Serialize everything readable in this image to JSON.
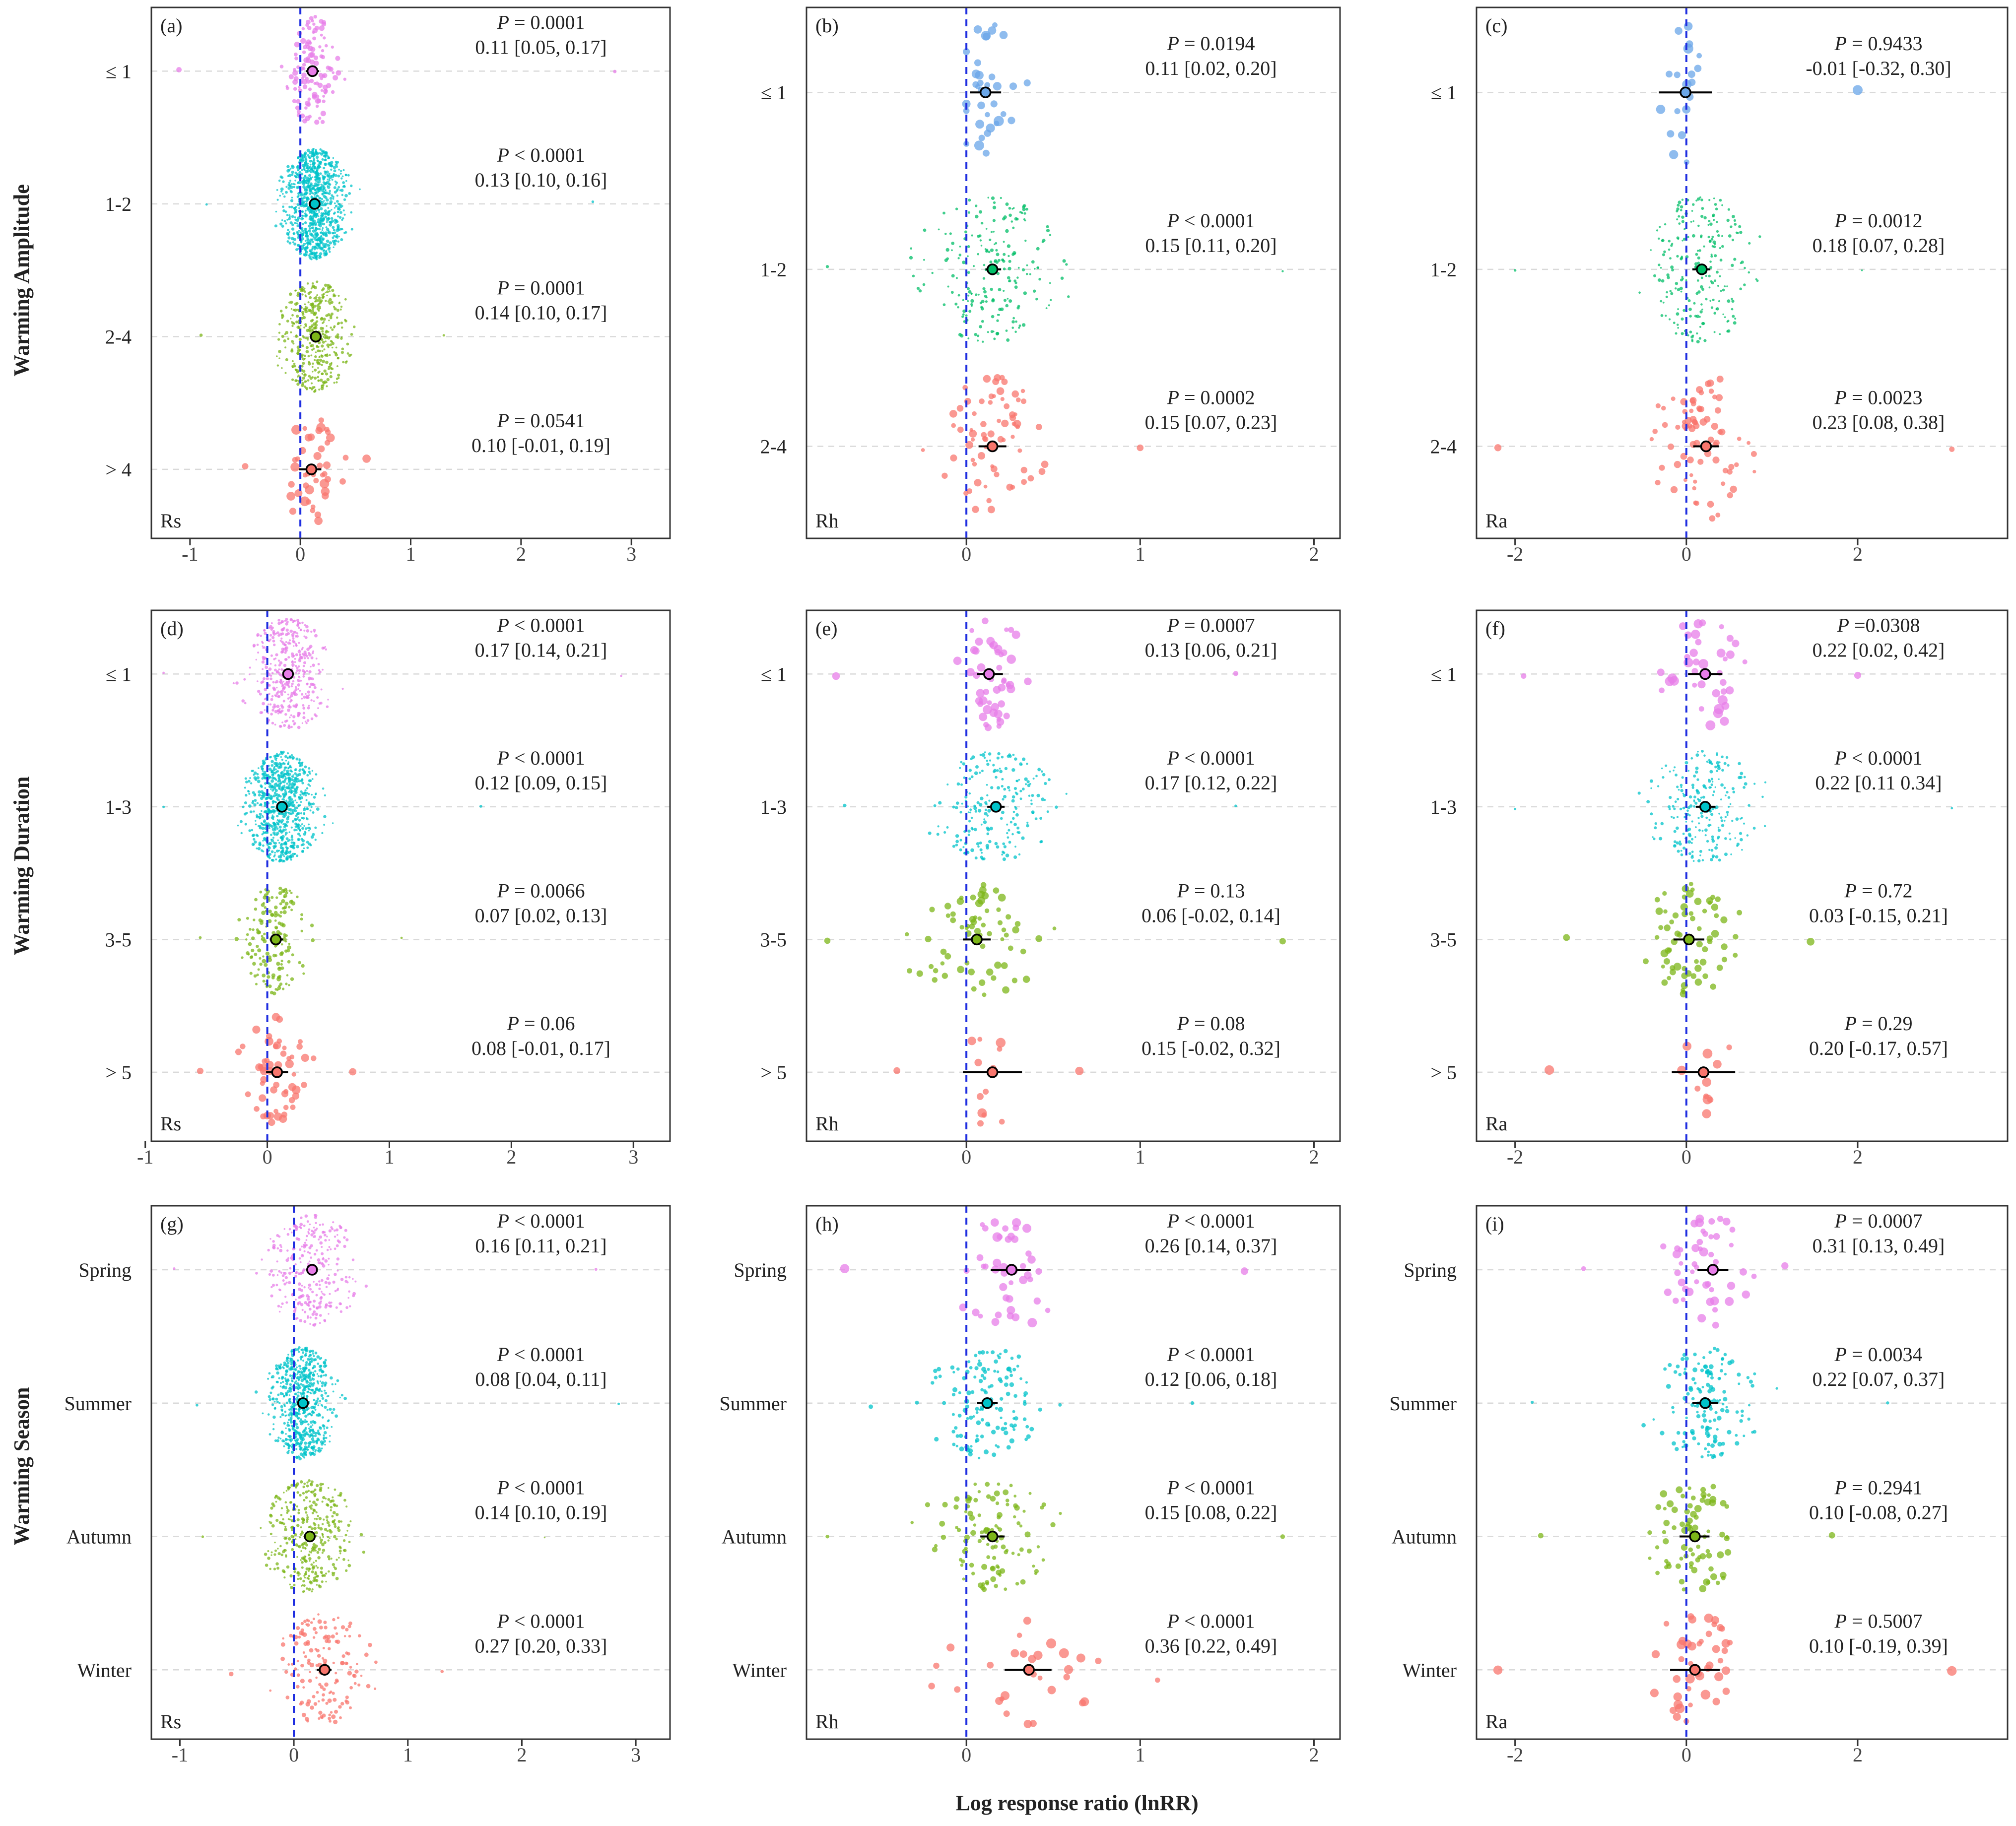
{
  "x_axis_label": "Log response ratio (lnRR)",
  "colors": {
    "c1": "#e77de8",
    "c2": "#00c3c9",
    "c3": "#7cb518",
    "c4": "#f8766d",
    "blue": "#6aa6e8",
    "green": "#00be67",
    "zero_line": "#1f2ee0"
  },
  "chart_data": [
    {
      "type": "scatter",
      "panel": "(a)",
      "response": "Rs",
      "row_title": "Warming Amplitude",
      "xlim": [
        -1.35,
        3.35
      ],
      "xticks": [
        -1,
        0,
        1,
        2,
        3
      ],
      "groups": [
        {
          "label": "≤ 1",
          "color": "#e77de8",
          "mean": 0.11,
          "ci": [
            0.05,
            0.17
          ],
          "p": "P = 0.0001",
          "ci_text": "0.11 [0.05, 0.17]",
          "n": 120,
          "spread": 0.18,
          "xmin": -1.1,
          "xmax": 2.85
        },
        {
          "label": "1-2",
          "color": "#00c3c9",
          "mean": 0.13,
          "ci": [
            0.1,
            0.16
          ],
          "p": "P < 0.0001",
          "ci_text": "0.13 [0.10, 0.16]",
          "n": 900,
          "spread": 0.22,
          "xmin": -0.85,
          "xmax": 2.65
        },
        {
          "label": "2-4",
          "color": "#7cb518",
          "mean": 0.14,
          "ci": [
            0.1,
            0.17
          ],
          "p": "P = 0.0001",
          "ci_text": "0.14 [0.10, 0.17]",
          "n": 420,
          "spread": 0.25,
          "xmin": -0.9,
          "xmax": 1.3
        },
        {
          "label": "> 4",
          "color": "#f8766d",
          "mean": 0.1,
          "ci": [
            -0.01,
            0.19
          ],
          "p": "P = 0.0541",
          "ci_text": "0.10 [-0.01, 0.19]",
          "n": 45,
          "spread": 0.22,
          "xmin": -0.5,
          "xmax": 0.6
        }
      ]
    },
    {
      "type": "scatter",
      "panel": "(b)",
      "response": "Rh",
      "xlim": [
        -0.92,
        2.15
      ],
      "xticks": [
        0,
        1,
        2
      ],
      "groups": [
        {
          "label": "≤ 1",
          "color": "#6aa6e8",
          "mean": 0.11,
          "ci": [
            0.02,
            0.2
          ],
          "p": "P = 0.0194",
          "ci_text": "0.11 [0.02, 0.20]",
          "n": 35,
          "spread": 0.12,
          "xmin": 0.0,
          "xmax": 0.35
        },
        {
          "label": "1-2",
          "color": "#00be67",
          "mean": 0.15,
          "ci": [
            0.11,
            0.2
          ],
          "p": "P < 0.0001",
          "ci_text": "0.15 [0.11, 0.20]",
          "n": 220,
          "spread": 0.3,
          "xmin": -0.8,
          "xmax": 1.82
        },
        {
          "label": "2-4",
          "color": "#f8766d",
          "mean": 0.15,
          "ci": [
            0.07,
            0.23
          ],
          "p": "P = 0.0002",
          "ci_text": "0.15 [0.07, 0.23]",
          "n": 70,
          "spread": 0.2,
          "xmin": -0.25,
          "xmax": 1.0
        }
      ]
    },
    {
      "type": "scatter",
      "panel": "(c)",
      "response": "Ra",
      "xlim": [
        -2.45,
        3.75
      ],
      "xticks": [
        -2,
        0,
        2
      ],
      "groups": [
        {
          "label": "≤ 1",
          "color": "#6aa6e8",
          "mean": -0.01,
          "ci": [
            -0.32,
            0.3
          ],
          "p": "P = 0.9433",
          "ci_text": "-0.01 [-0.32, 0.30]",
          "n": 20,
          "spread": 0.2,
          "xmin": -0.3,
          "xmax": 2.0
        },
        {
          "label": "1-2",
          "color": "#00be67",
          "mean": 0.18,
          "ci": [
            0.07,
            0.28
          ],
          "p": "P = 0.0012",
          "ci_text": "0.18 [0.07, 0.28]",
          "n": 230,
          "spread": 0.5,
          "xmin": -2.0,
          "xmax": 2.05
        },
        {
          "label": "2-4",
          "color": "#f8766d",
          "mean": 0.23,
          "ci": [
            0.08,
            0.38
          ],
          "p": "P = 0.0023",
          "ci_text": "0.23 [0.08, 0.38]",
          "n": 80,
          "spread": 0.45,
          "xmin": -2.2,
          "xmax": 3.1
        }
      ]
    },
    {
      "type": "scatter",
      "panel": "(d)",
      "response": "Rs",
      "row_title": "Warming Duration",
      "xlim": [
        -0.95,
        3.3
      ],
      "xticks": [
        -1,
        0,
        1,
        2,
        3
      ],
      "groups": [
        {
          "label": "≤ 1",
          "color": "#e77de8",
          "mean": 0.17,
          "ci": [
            0.14,
            0.21
          ],
          "p": "P < 0.0001",
          "ci_text": "0.17 [0.14, 0.21]",
          "n": 420,
          "spread": 0.25,
          "xmin": -0.85,
          "xmax": 2.9
        },
        {
          "label": "1-3",
          "color": "#00c3c9",
          "mean": 0.12,
          "ci": [
            0.09,
            0.15
          ],
          "p": "P < 0.0001",
          "ci_text": "0.12 [0.09, 0.15]",
          "n": 750,
          "spread": 0.22,
          "xmin": -0.85,
          "xmax": 1.75
        },
        {
          "label": "3-5",
          "color": "#7cb518",
          "mean": 0.07,
          "ci": [
            0.02,
            0.13
          ],
          "p": "P = 0.0066",
          "ci_text": "0.07 [0.02, 0.13]",
          "n": 170,
          "spread": 0.2,
          "xmin": -0.55,
          "xmax": 1.1
        },
        {
          "label": "> 5",
          "color": "#f8766d",
          "mean": 0.08,
          "ci": [
            -0.01,
            0.17
          ],
          "p": "P = 0.06",
          "ci_text": "0.08 [-0.01, 0.17]",
          "n": 55,
          "spread": 0.2,
          "xmin": -0.55,
          "xmax": 0.7
        }
      ]
    },
    {
      "type": "scatter",
      "panel": "(e)",
      "response": "Rh",
      "xlim": [
        -0.92,
        2.15
      ],
      "xticks": [
        0,
        1,
        2
      ],
      "groups": [
        {
          "label": "≤ 1",
          "color": "#e77de8",
          "mean": 0.13,
          "ci": [
            0.06,
            0.21
          ],
          "p": "P = 0.0007",
          "ci_text": "0.13 [0.06, 0.21]",
          "n": 50,
          "spread": 0.15,
          "xmin": -0.75,
          "xmax": 1.55
        },
        {
          "label": "1-3",
          "color": "#00c3c9",
          "mean": 0.17,
          "ci": [
            0.12,
            0.22
          ],
          "p": "P < 0.0001",
          "ci_text": "0.17 [0.12, 0.22]",
          "n": 210,
          "spread": 0.25,
          "xmin": -0.7,
          "xmax": 1.55
        },
        {
          "label": "3-5",
          "color": "#7cb518",
          "mean": 0.06,
          "ci": [
            -0.02,
            0.14
          ],
          "p": "P = 0.13",
          "ci_text": "0.06 [-0.02, 0.14]",
          "n": 70,
          "spread": 0.3,
          "xmin": -0.8,
          "xmax": 1.82
        },
        {
          "label": "> 5",
          "color": "#f8766d",
          "mean": 0.15,
          "ci": [
            -0.02,
            0.32
          ],
          "p": "P = 0.08",
          "ci_text": "0.15 [-0.02, 0.32]",
          "n": 14,
          "spread": 0.15,
          "xmin": -0.4,
          "xmax": 0.65
        }
      ]
    },
    {
      "type": "scatter",
      "panel": "(f)",
      "response": "Ra",
      "xlim": [
        -2.45,
        3.75
      ],
      "xticks": [
        -2,
        0,
        2
      ],
      "groups": [
        {
          "label": "≤ 1",
          "color": "#e77de8",
          "mean": 0.22,
          "ci": [
            0.02,
            0.42
          ],
          "p": "P =0.0308",
          "ci_text": "0.22 [0.02, 0.42]",
          "n": 40,
          "spread": 0.4,
          "xmin": -1.9,
          "xmax": 2.0
        },
        {
          "label": "1-3",
          "color": "#00c3c9",
          "mean": 0.22,
          "ci": [
            0.11,
            0.34
          ],
          "p": "P < 0.0001",
          "ci_text": "0.22 [0.11 0.34]",
          "n": 230,
          "spread": 0.5,
          "xmin": -2.0,
          "xmax": 3.1
        },
        {
          "label": "3-5",
          "color": "#7cb518",
          "mean": 0.03,
          "ci": [
            -0.15,
            0.21
          ],
          "p": "P = 0.72",
          "ci_text": "0.03 [-0.15, 0.21]",
          "n": 70,
          "spread": 0.4,
          "xmin": -1.4,
          "xmax": 1.45
        },
        {
          "label": "> 5",
          "color": "#f8766d",
          "mean": 0.2,
          "ci": [
            -0.17,
            0.57
          ],
          "p": "P = 0.29",
          "ci_text": "0.20 [-0.17, 0.57]",
          "n": 12,
          "spread": 0.2,
          "xmin": -1.6,
          "xmax": 0.5
        }
      ]
    },
    {
      "type": "scatter",
      "panel": "(g)",
      "response": "Rs",
      "row_title": "Warming Season",
      "xlim": [
        -1.25,
        3.3
      ],
      "xticks": [
        -1,
        0,
        1,
        2,
        3
      ],
      "groups": [
        {
          "label": "Spring",
          "color": "#e77de8",
          "mean": 0.16,
          "ci": [
            0.11,
            0.21
          ],
          "p": "P < 0.0001",
          "ci_text": "0.16 [0.11, 0.21]",
          "n": 300,
          "spread": 0.3,
          "xmin": -1.05,
          "xmax": 2.65
        },
        {
          "label": "Summer",
          "color": "#00c3c9",
          "mean": 0.08,
          "ci": [
            0.04,
            0.11
          ],
          "p": "P < 0.0001",
          "ci_text": "0.08 [0.04, 0.11]",
          "n": 650,
          "spread": 0.22,
          "xmin": -0.85,
          "xmax": 2.85
        },
        {
          "label": "Autumn",
          "color": "#7cb518",
          "mean": 0.14,
          "ci": [
            0.1,
            0.19
          ],
          "p": "P < 0.0001",
          "ci_text": "0.14 [0.10, 0.19]",
          "n": 380,
          "spread": 0.3,
          "xmin": -0.8,
          "xmax": 2.2
        },
        {
          "label": "Winter",
          "color": "#f8766d",
          "mean": 0.27,
          "ci": [
            0.2,
            0.33
          ],
          "p": "P < 0.0001",
          "ci_text": "0.27 [0.20, 0.33]",
          "n": 160,
          "spread": 0.3,
          "xmin": -0.55,
          "xmax": 1.3
        }
      ]
    },
    {
      "type": "scatter",
      "panel": "(h)",
      "response": "Rh",
      "xlim": [
        -0.92,
        2.15
      ],
      "xticks": [
        0,
        1,
        2
      ],
      "groups": [
        {
          "label": "Spring",
          "color": "#e77de8",
          "mean": 0.26,
          "ci": [
            0.14,
            0.37
          ],
          "p": "P < 0.0001",
          "ci_text": "0.26 [0.14, 0.37]",
          "n": 45,
          "spread": 0.3,
          "xmin": -0.7,
          "xmax": 1.6
        },
        {
          "label": "Summer",
          "color": "#00c3c9",
          "mean": 0.12,
          "ci": [
            0.06,
            0.18
          ],
          "p": "P < 0.0001",
          "ci_text": "0.12 [0.06, 0.18]",
          "n": 140,
          "spread": 0.25,
          "xmin": -0.55,
          "xmax": 1.3
        },
        {
          "label": "Autumn",
          "color": "#7cb518",
          "mean": 0.15,
          "ci": [
            0.08,
            0.22
          ],
          "p": "P < 0.0001",
          "ci_text": "0.15 [0.08, 0.22]",
          "n": 110,
          "spread": 0.3,
          "xmin": -0.8,
          "xmax": 1.82
        },
        {
          "label": "Winter",
          "color": "#f8766d",
          "mean": 0.36,
          "ci": [
            0.22,
            0.49
          ],
          "p": "P < 0.0001",
          "ci_text": "0.36 [0.22, 0.49]",
          "n": 30,
          "spread": 0.35,
          "xmin": -0.2,
          "xmax": 1.1
        }
      ]
    },
    {
      "type": "scatter",
      "panel": "(i)",
      "response": "Ra",
      "xlim": [
        -2.45,
        3.75
      ],
      "xticks": [
        -2,
        0,
        2
      ],
      "groups": [
        {
          "label": "Spring",
          "color": "#e77de8",
          "mean": 0.31,
          "ci": [
            0.13,
            0.49
          ],
          "p": "P = 0.0007",
          "ci_text": "0.31 [0.13, 0.49]",
          "n": 50,
          "spread": 0.4,
          "xmin": -1.2,
          "xmax": 1.15
        },
        {
          "label": "Summer",
          "color": "#00c3c9",
          "mean": 0.22,
          "ci": [
            0.07,
            0.37
          ],
          "p": "P = 0.0034",
          "ci_text": "0.22 [0.07, 0.37]",
          "n": 150,
          "spread": 0.45,
          "xmin": -1.8,
          "xmax": 2.35
        },
        {
          "label": "Autumn",
          "color": "#7cb518",
          "mean": 0.1,
          "ci": [
            -0.08,
            0.27
          ],
          "p": "P = 0.2941",
          "ci_text": "0.10 [-0.08, 0.27]",
          "n": 80,
          "spread": 0.4,
          "xmin": -1.7,
          "xmax": 1.7
        },
        {
          "label": "Winter",
          "color": "#f8766d",
          "mean": 0.1,
          "ci": [
            -0.19,
            0.39
          ],
          "p": "P = 0.5007",
          "ci_text": "0.10 [-0.19, 0.39]",
          "n": 45,
          "spread": 0.45,
          "xmin": -2.2,
          "xmax": 3.1
        }
      ]
    }
  ]
}
